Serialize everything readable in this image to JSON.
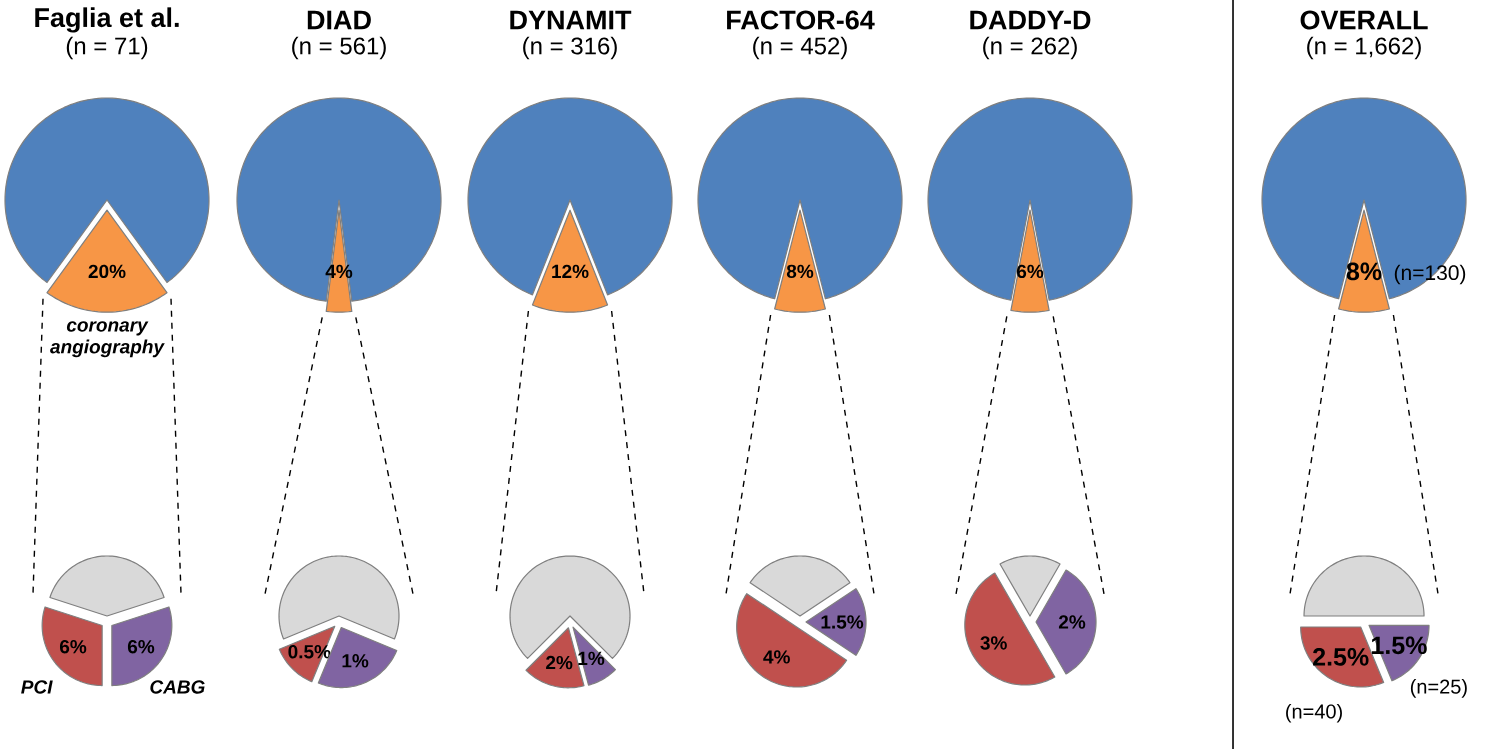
{
  "chart_data": [
    {
      "type": "pie",
      "title": "Faglia et al.",
      "subtitle": "(n = 71)",
      "categories": [
        null,
        "coronary angiography"
      ],
      "values": [
        80,
        20
      ],
      "colors": [
        "#4f81bd",
        "#f79646"
      ],
      "value_labels": [
        null,
        "20%"
      ]
    },
    {
      "type": "pie",
      "categories": [
        null,
        "PCI",
        "CABG"
      ],
      "values": [
        8,
        6,
        6
      ],
      "colors": [
        "#d9d9d9",
        "#c0504d",
        "#8064a2"
      ],
      "value_labels": [
        null,
        "6%",
        "6%"
      ]
    },
    {
      "type": "pie",
      "title": "DIAD",
      "subtitle": "(n = 561)",
      "categories": [
        null,
        null
      ],
      "values": [
        96,
        4
      ],
      "colors": [
        "#4f81bd",
        "#f79646"
      ],
      "value_labels": [
        null,
        "4%"
      ]
    },
    {
      "type": "pie",
      "categories": [
        null,
        null,
        null
      ],
      "values": [
        2.5,
        0.5,
        1
      ],
      "colors": [
        "#d9d9d9",
        "#c0504d",
        "#8064a2"
      ],
      "value_labels": [
        null,
        "0.5%",
        "1%"
      ]
    },
    {
      "type": "pie",
      "title": "DYNAMIT",
      "subtitle": "(n = 316)",
      "categories": [
        null,
        null
      ],
      "values": [
        88,
        12
      ],
      "colors": [
        "#4f81bd",
        "#f79646"
      ],
      "value_labels": [
        null,
        "12%"
      ]
    },
    {
      "type": "pie",
      "categories": [
        null,
        null,
        null
      ],
      "values": [
        9,
        2,
        1
      ],
      "colors": [
        "#d9d9d9",
        "#c0504d",
        "#8064a2"
      ],
      "value_labels": [
        null,
        "2%",
        "1%"
      ]
    },
    {
      "type": "pie",
      "title": "FACTOR-64",
      "subtitle": "(n = 452)",
      "categories": [
        null,
        null
      ],
      "values": [
        92,
        8
      ],
      "colors": [
        "#4f81bd",
        "#f79646"
      ],
      "value_labels": [
        null,
        "8%"
      ]
    },
    {
      "type": "pie",
      "categories": [
        null,
        null,
        null
      ],
      "values": [
        2.5,
        4,
        1.5
      ],
      "colors": [
        "#d9d9d9",
        "#c0504d",
        "#8064a2"
      ],
      "value_labels": [
        null,
        "4%",
        "1.5%"
      ]
    },
    {
      "type": "pie",
      "title": "DADDY-D",
      "subtitle": "(n = 262)",
      "categories": [
        null,
        null
      ],
      "values": [
        94,
        6
      ],
      "colors": [
        "#4f81bd",
        "#f79646"
      ],
      "value_labels": [
        null,
        "6%"
      ]
    },
    {
      "type": "pie",
      "categories": [
        null,
        null,
        null
      ],
      "values": [
        1,
        3,
        2
      ],
      "colors": [
        "#d9d9d9",
        "#c0504d",
        "#8064a2"
      ],
      "value_labels": [
        null,
        "3%",
        "2%"
      ]
    },
    {
      "type": "pie",
      "title": "OVERALL",
      "subtitle": "(n = 1,662)",
      "categories": [
        null,
        null
      ],
      "values": [
        92,
        8
      ],
      "colors": [
        "#4f81bd",
        "#f79646"
      ],
      "value_labels": [
        null,
        "8%"
      ],
      "annotations": [
        "(n=130)"
      ]
    },
    {
      "type": "pie",
      "categories": [
        null,
        null,
        null
      ],
      "values": [
        4,
        2.5,
        1.5
      ],
      "colors": [
        "#d9d9d9",
        "#c0504d",
        "#8064a2"
      ],
      "value_labels": [
        null,
        "2.5%",
        "1.5%"
      ],
      "annotations": [
        "(n=40)",
        "(n=25)"
      ]
    }
  ]
}
